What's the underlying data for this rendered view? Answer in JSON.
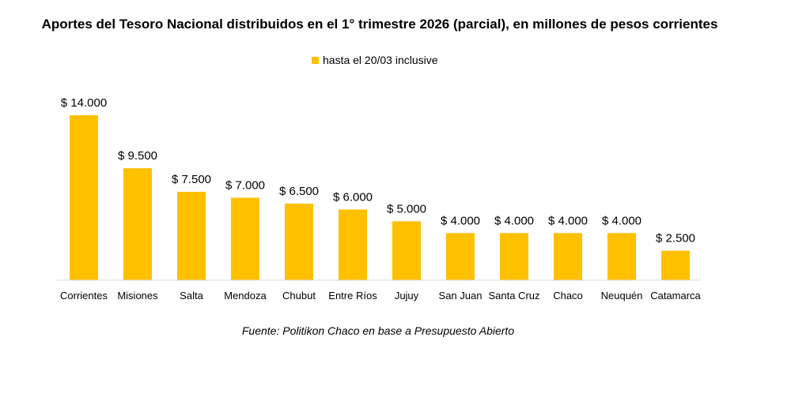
{
  "chart_data": {
    "type": "bar",
    "title": "Aportes del Tesoro Nacional distribuidos en el 1° trimestre 2026 (parcial), en millones de pesos corrientes",
    "legend": [
      "hasta el 20/03 inclusive"
    ],
    "legend_position": "top-center",
    "series": [
      {
        "name": "hasta el 20/03 inclusive",
        "color": "#ffc000",
        "values": [
          14000,
          9500,
          7500,
          7000,
          6500,
          6000,
          5000,
          4000,
          4000,
          4000,
          4000,
          2500
        ]
      }
    ],
    "categories": [
      "Corrientes",
      "Misiones",
      "Salta",
      "Mendoza",
      "Chubut",
      "Entre Ríos",
      "Jujuy",
      "San Juan",
      "Santa Cruz",
      "Chaco",
      "Neuquén",
      "Catamarca"
    ],
    "value_labels": [
      "$ 14.000",
      "$ 9.500",
      "$ 7.500",
      "$ 7.000",
      "$ 6.500",
      "$ 6.000",
      "$ 5.000",
      "$ 4.000",
      "$ 4.000",
      "$ 4.000",
      "$ 4.000",
      "$ 2.500"
    ],
    "ylim": [
      0,
      14000
    ],
    "grid": false,
    "source": "Fuente: Politikon Chaco en base a Presupuesto Abierto"
  }
}
